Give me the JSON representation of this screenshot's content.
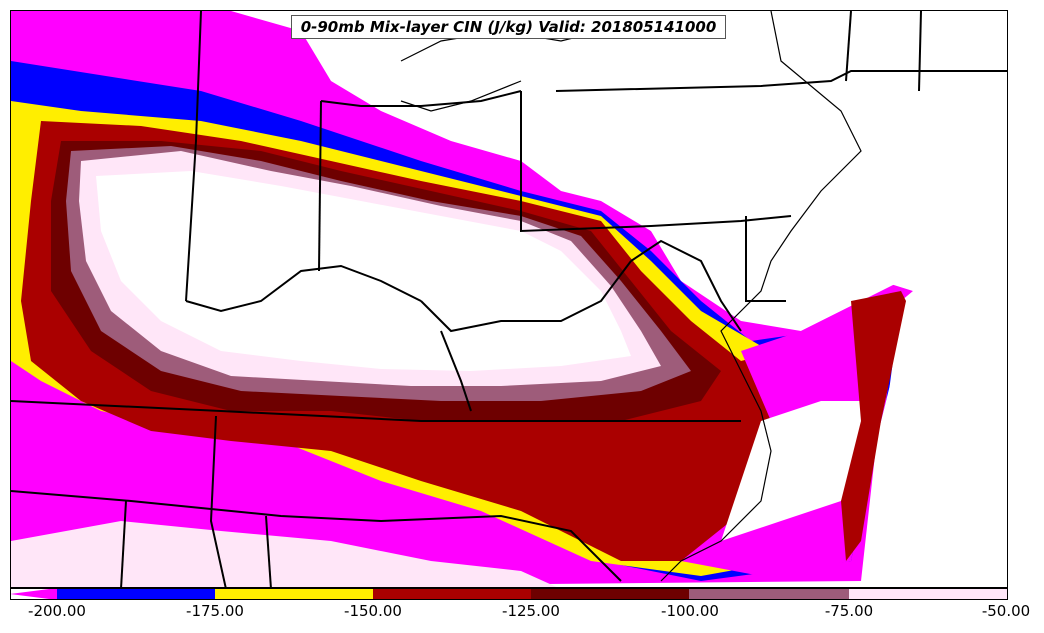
{
  "title": "0-90mb Mix-layer CIN (J/kg) Valid: 201805141000",
  "colorbar": {
    "ticks": [
      "-200.00",
      "-175.00",
      "-150.00",
      "-125.00",
      "-100.00",
      "-75.00",
      "-50.00"
    ],
    "levels": [
      -200,
      -175,
      -150,
      -125,
      -100,
      -75,
      -50
    ],
    "colors": {
      "below_min": "#ff00ff",
      "bin_1": "#0000ff",
      "bin_2": "#ffee00",
      "bin_3": "#aa0000",
      "bin_4": "#6e0000",
      "bin_5": "#9e5c7a",
      "bin_6": "#ffe6f8"
    }
  }
}
